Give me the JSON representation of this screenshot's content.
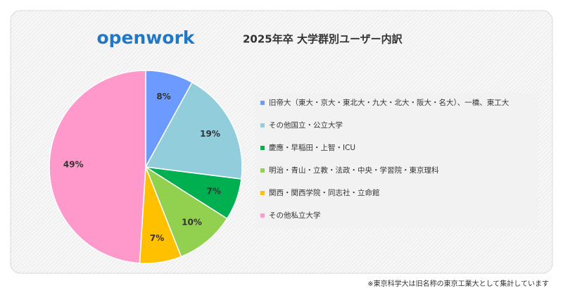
{
  "chart_data": {
    "type": "pie",
    "logo": "openwork",
    "title": "2025年卒 大学群別ユーザー内訳",
    "categories": [
      "旧帝大（東大・京大・東北大・九大・北大・阪大・名大）、一橋、東工大",
      "その他国立・公立大学",
      "慶應・早稲田・上智・ICU",
      "明治・青山・立教・法政・中央・学習院・東京理科",
      "関西・関西学院・同志社・立命館",
      "その他私立大学"
    ],
    "values": [
      8,
      19,
      7,
      10,
      7,
      49
    ],
    "value_labels": [
      "8%",
      "19%",
      "7%",
      "10%",
      "7%",
      "49%"
    ],
    "colors": [
      "#6b9bff",
      "#92cddc",
      "#00b050",
      "#92d050",
      "#ffc000",
      "#ff99cc"
    ],
    "legend": "right",
    "footnote": "※東京科学大は旧名称の東京工業大として集計しています"
  }
}
